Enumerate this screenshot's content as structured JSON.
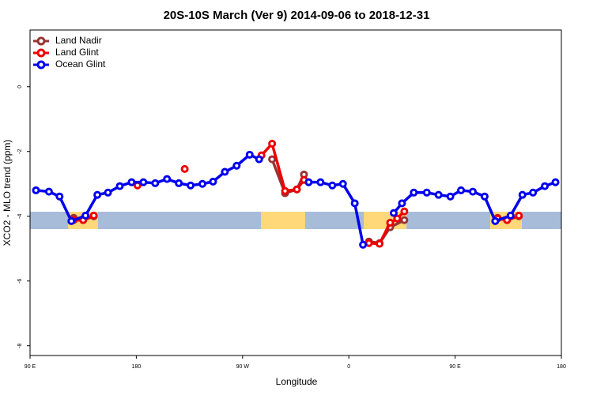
{
  "chart_data": {
    "type": "line",
    "title": "20S-10S March (Ver 9)   2014-09-06 to 2018-12-31",
    "x_label": "Longitude",
    "y_label": "XCO2 - MLO trend (ppm)",
    "xlim": [
      90,
      540
    ],
    "ylim": [
      -8.3,
      1.75
    ],
    "xticks": [
      {
        "value": 90,
        "label": "90 E"
      },
      180,
      {
        "value": 270,
        "label": "90 W"
      },
      {
        "value": 360,
        "label": "0"
      },
      {
        "value": 450,
        "label": "90 E"
      },
      {
        "value": 540,
        "label": "180"
      }
    ],
    "yticks": [
      0,
      -2,
      -4,
      -6,
      -8
    ],
    "grid": false,
    "legend": "top-left",
    "series": [
      {
        "name": "Land Nadir",
        "color": "#993333",
        "x": [
          127,
          135,
          144,
          220,
          295,
          306,
          316,
          322,
          350,
          377,
          386,
          395,
          407,
          450,
          486,
          494,
          504
        ],
        "values": [
          -4.05,
          -4.12,
          -4.0,
          null,
          -2.24,
          -3.29,
          -3.17,
          -2.71,
          null,
          -4.78,
          -4.83,
          -4.34,
          -4.12,
          null,
          -4.05,
          -4.12,
          -4.0
        ]
      },
      {
        "name": "Land Glint",
        "color": "#ee0000",
        "x": [
          127,
          135,
          144,
          160,
          181,
          200,
          221,
          250,
          286,
          295,
          306,
          316,
          322,
          350,
          377,
          386,
          395,
          401,
          407,
          450,
          486,
          494,
          504
        ],
        "values": [
          -4.12,
          -4.12,
          -3.98,
          null,
          -3.05,
          null,
          -2.54,
          null,
          -2.12,
          -1.76,
          -3.22,
          -3.17,
          -2.88,
          null,
          -4.83,
          -4.85,
          -4.2,
          -4.07,
          -3.85,
          null,
          -4.07,
          -4.12,
          -3.98
        ]
      },
      {
        "name": "Ocean Glint",
        "color": "#0000ee",
        "x": [
          95,
          106,
          115,
          125,
          137,
          147,
          156,
          166,
          176,
          186,
          196,
          206,
          216,
          226,
          236,
          245,
          255,
          265,
          276,
          284,
          300,
          326,
          336,
          346,
          355,
          365,
          372,
          385,
          398,
          405,
          415,
          426,
          436,
          446,
          455,
          465,
          475,
          484,
          497,
          507,
          516,
          526,
          535
        ],
        "values": [
          -3.2,
          -3.24,
          -3.39,
          -4.15,
          -3.98,
          -3.34,
          -3.27,
          -3.07,
          -2.95,
          -2.95,
          -2.98,
          -2.85,
          -2.98,
          -3.05,
          -3.0,
          -2.93,
          -2.63,
          -2.44,
          -2.1,
          -2.24,
          null,
          -2.95,
          -2.95,
          -3.05,
          -3.0,
          -3.6,
          -4.88,
          null,
          -3.9,
          -3.6,
          -3.27,
          -3.27,
          -3.34,
          -3.39,
          -3.2,
          -3.24,
          -3.39,
          -4.15,
          -3.98,
          -3.34,
          -3.27,
          -3.07,
          -2.95
        ]
      }
    ]
  }
}
